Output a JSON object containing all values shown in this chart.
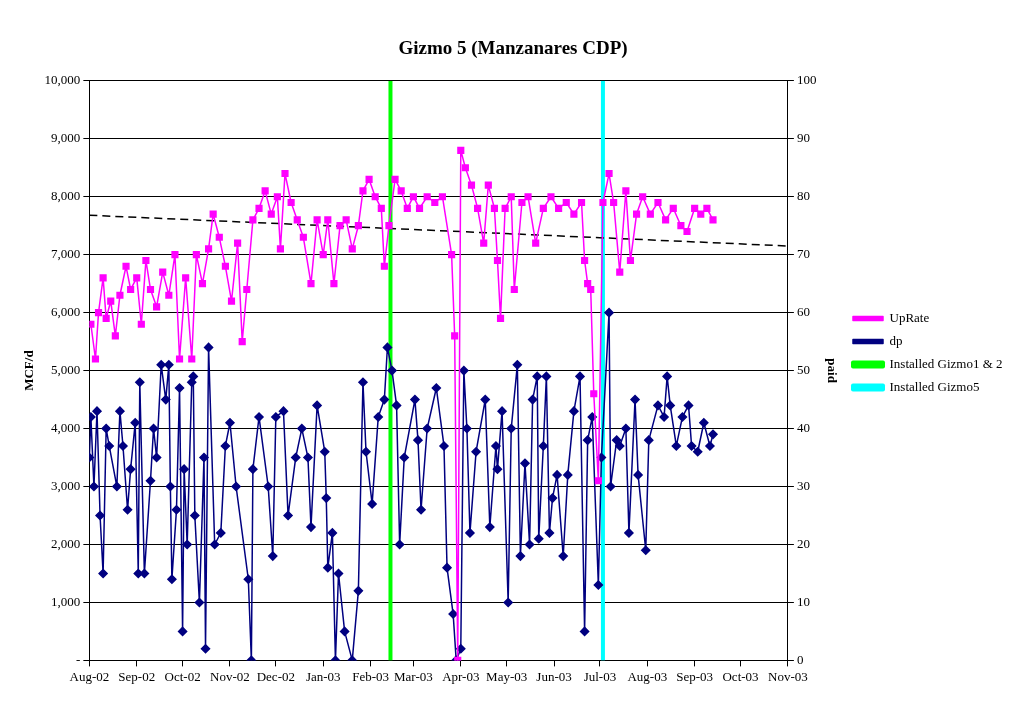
{
  "chart_data": {
    "type": "line",
    "title": "Gizmo 5 (Manzanares CDP)",
    "ylabel": "MCF/d",
    "y2label": "paid",
    "xlim": [
      "2002-08-01",
      "2003-11-01"
    ],
    "xticks": [
      {
        "value": "2002-08-01",
        "label": "Aug-02"
      },
      {
        "value": "2002-09-01",
        "label": "Sep-02"
      },
      {
        "value": "2002-10-01",
        "label": "Oct-02"
      },
      {
        "value": "2002-11-01",
        "label": "Nov-02"
      },
      {
        "value": "2002-12-01",
        "label": "Dec-02"
      },
      {
        "value": "2003-01-01",
        "label": "Jan-03"
      },
      {
        "value": "2003-02-01",
        "label": "Feb-03"
      },
      {
        "value": "2003-03-01",
        "label": "Mar-03"
      },
      {
        "value": "2003-04-01",
        "label": "Apr-03"
      },
      {
        "value": "2003-05-01",
        "label": "May-03"
      },
      {
        "value": "2003-06-01",
        "label": "Jun-03"
      },
      {
        "value": "2003-07-01",
        "label": "Jul-03"
      },
      {
        "value": "2003-08-01",
        "label": "Aug-03"
      },
      {
        "value": "2003-09-01",
        "label": "Sep-03"
      },
      {
        "value": "2003-10-01",
        "label": "Oct-03"
      },
      {
        "value": "2003-11-01",
        "label": "Nov-03"
      }
    ],
    "ylim": [
      0,
      10000
    ],
    "yticks": [
      {
        "value": 0,
        "label": "-"
      },
      {
        "value": 1000,
        "label": "1,000"
      },
      {
        "value": 2000,
        "label": "2,000"
      },
      {
        "value": 3000,
        "label": "3,000"
      },
      {
        "value": 4000,
        "label": "4,000"
      },
      {
        "value": 5000,
        "label": "5,000"
      },
      {
        "value": 6000,
        "label": "6,000"
      },
      {
        "value": 7000,
        "label": "7,000"
      },
      {
        "value": 8000,
        "label": "8,000"
      },
      {
        "value": 9000,
        "label": "9,000"
      },
      {
        "value": 10000,
        "label": "10,000"
      }
    ],
    "y2lim": [
      0,
      100
    ],
    "y2ticks": [
      0,
      10,
      20,
      30,
      40,
      50,
      60,
      70,
      80,
      90,
      100
    ],
    "grid": "y",
    "legend": "right",
    "series": [
      {
        "name": "UpRate",
        "color": "#ff00ff",
        "marker": "square",
        "x": [
          "2002-08-02",
          "2002-08-05",
          "2002-08-07",
          "2002-08-10",
          "2002-08-12",
          "2002-08-15",
          "2002-08-18",
          "2002-08-21",
          "2002-08-25",
          "2002-08-28",
          "2002-09-01",
          "2002-09-04",
          "2002-09-07",
          "2002-09-10",
          "2002-09-14",
          "2002-09-18",
          "2002-09-22",
          "2002-09-26",
          "2002-09-29",
          "2002-10-03",
          "2002-10-07",
          "2002-10-10",
          "2002-10-14",
          "2002-10-18",
          "2002-10-21",
          "2002-10-25",
          "2002-10-29",
          "2002-11-02",
          "2002-11-06",
          "2002-11-09",
          "2002-11-12",
          "2002-11-16",
          "2002-11-20",
          "2002-11-24",
          "2002-11-28",
          "2002-12-02",
          "2002-12-04",
          "2002-12-07",
          "2002-12-11",
          "2002-12-15",
          "2002-12-19",
          "2002-12-24",
          "2002-12-28",
          "2003-01-01",
          "2003-01-04",
          "2003-01-08",
          "2003-01-12",
          "2003-01-16",
          "2003-01-20",
          "2003-01-24",
          "2003-01-27",
          "2003-01-31",
          "2003-02-04",
          "2003-02-08",
          "2003-02-10",
          "2003-02-13",
          "2003-02-17",
          "2003-02-21",
          "2003-02-25",
          "2003-03-01",
          "2003-03-05",
          "2003-03-10",
          "2003-03-15",
          "2003-03-20",
          "2003-03-26",
          "2003-03-28",
          "2003-03-30",
          "2003-04-01",
          "2003-04-04",
          "2003-04-08",
          "2003-04-12",
          "2003-04-16",
          "2003-04-19",
          "2003-04-23",
          "2003-04-25",
          "2003-04-27",
          "2003-04-30",
          "2003-05-04",
          "2003-05-06",
          "2003-05-11",
          "2003-05-15",
          "2003-05-20",
          "2003-05-25",
          "2003-05-30",
          "2003-06-04",
          "2003-06-09",
          "2003-06-14",
          "2003-06-19",
          "2003-06-21",
          "2003-06-23",
          "2003-06-25",
          "2003-06-27",
          "2003-06-30",
          "2003-07-03",
          "2003-07-07",
          "2003-07-10",
          "2003-07-14",
          "2003-07-18",
          "2003-07-21",
          "2003-07-25",
          "2003-07-29",
          "2003-08-03",
          "2003-08-08",
          "2003-08-13",
          "2003-08-18",
          "2003-08-23",
          "2003-08-27",
          "2003-09-01",
          "2003-09-05",
          "2003-09-09",
          "2003-09-13"
        ],
        "values": [
          5800,
          5200,
          6000,
          6600,
          5900,
          6200,
          5600,
          6300,
          6800,
          6400,
          6600,
          5800,
          6900,
          6400,
          6100,
          6700,
          6300,
          7000,
          5200,
          6600,
          5200,
          7000,
          6500,
          7100,
          7700,
          7300,
          6800,
          6200,
          7200,
          5500,
          6400,
          7600,
          7800,
          8100,
          7700,
          8000,
          7100,
          8400,
          7900,
          7600,
          7300,
          6500,
          7600,
          7000,
          7600,
          6500,
          7500,
          7600,
          7100,
          7500,
          8100,
          8300,
          8000,
          7800,
          6800,
          7500,
          8300,
          8100,
          7800,
          8000,
          7800,
          8000,
          7900,
          8000,
          7000,
          5600,
          0,
          8800,
          8500,
          8200,
          7800,
          7200,
          8200,
          7800,
          6900,
          5900,
          7800,
          8000,
          6400,
          7900,
          8000,
          7200,
          7800,
          8000,
          7800,
          7900,
          7700,
          7900,
          6900,
          6500,
          6400,
          4600,
          3100,
          7900,
          8400,
          7900,
          6700,
          8100,
          6900,
          7700,
          8000,
          7700,
          7900,
          7600,
          7800,
          7500,
          7400,
          7800,
          7700,
          7800,
          7600
        ]
      },
      {
        "name": "dp",
        "color": "#000080",
        "marker": "diamond",
        "axis": "y2",
        "x": [
          "2002-08-01",
          "2002-08-02",
          "2002-08-04",
          "2002-08-06",
          "2002-08-08",
          "2002-08-10",
          "2002-08-12",
          "2002-08-14",
          "2002-08-19",
          "2002-08-21",
          "2002-08-23",
          "2002-08-26",
          "2002-08-28",
          "2002-08-31",
          "2002-09-02",
          "2002-09-03",
          "2002-09-06",
          "2002-09-10",
          "2002-09-12",
          "2002-09-14",
          "2002-09-17",
          "2002-09-20",
          "2002-09-22",
          "2002-09-23",
          "2002-09-24",
          "2002-09-27",
          "2002-09-29",
          "2002-10-01",
          "2002-10-02",
          "2002-10-04",
          "2002-10-07",
          "2002-10-08",
          "2002-10-09",
          "2002-10-12",
          "2002-10-15",
          "2002-10-16",
          "2002-10-18",
          "2002-10-22",
          "2002-10-26",
          "2002-10-29",
          "2002-11-01",
          "2002-11-05",
          "2002-11-13",
          "2002-11-15",
          "2002-11-16",
          "2002-11-20",
          "2002-11-26",
          "2002-11-29",
          "2002-12-01",
          "2002-12-06",
          "2002-12-09",
          "2002-12-14",
          "2002-12-18",
          "2002-12-22",
          "2002-12-24",
          "2002-12-28",
          "2003-01-02",
          "2003-01-03",
          "2003-01-04",
          "2003-01-07",
          "2003-01-09",
          "2003-01-11",
          "2003-01-15",
          "2003-01-20",
          "2003-01-24",
          "2003-01-27",
          "2003-01-29",
          "2003-02-02",
          "2003-02-06",
          "2003-02-10",
          "2003-02-12",
          "2003-02-15",
          "2003-02-18",
          "2003-02-20",
          "2003-02-23",
          "2003-03-02",
          "2003-03-04",
          "2003-03-06",
          "2003-03-10",
          "2003-03-16",
          "2003-03-21",
          "2003-03-23",
          "2003-03-27",
          "2003-03-29",
          "2003-04-01",
          "2003-04-03",
          "2003-04-05",
          "2003-04-07",
          "2003-04-11",
          "2003-04-17",
          "2003-04-20",
          "2003-04-24",
          "2003-04-25",
          "2003-04-28",
          "2003-05-02",
          "2003-05-04",
          "2003-05-08",
          "2003-05-10",
          "2003-05-13",
          "2003-05-16",
          "2003-05-18",
          "2003-05-21",
          "2003-05-22",
          "2003-05-25",
          "2003-05-27",
          "2003-05-29",
          "2003-05-31",
          "2003-06-03",
          "2003-06-07",
          "2003-06-10",
          "2003-06-14",
          "2003-06-18",
          "2003-06-21",
          "2003-06-23",
          "2003-06-26",
          "2003-06-30",
          "2003-07-02",
          "2003-07-07",
          "2003-07-08",
          "2003-07-12",
          "2003-07-14",
          "2003-07-18",
          "2003-07-20",
          "2003-07-24",
          "2003-07-26",
          "2003-07-31",
          "2003-08-02",
          "2003-08-08",
          "2003-08-12",
          "2003-08-14",
          "2003-08-16",
          "2003-08-20",
          "2003-08-24",
          "2003-08-28",
          "2003-08-30",
          "2003-09-03",
          "2003-09-07",
          "2003-09-11",
          "2003-09-13"
        ],
        "values": [
          35,
          42,
          30,
          43,
          25,
          15,
          40,
          37,
          30,
          43,
          37,
          26,
          33,
          41,
          15,
          48,
          15,
          31,
          40,
          35,
          51,
          45,
          51,
          30,
          14,
          26,
          47,
          5,
          33,
          20,
          48,
          49,
          25,
          10,
          35,
          2,
          54,
          20,
          22,
          37,
          41,
          30,
          14,
          0,
          33,
          42,
          30,
          18,
          42,
          43,
          25,
          35,
          40,
          35,
          23,
          44,
          36,
          28,
          16,
          22,
          0,
          15,
          5,
          0,
          12,
          48,
          36,
          27,
          42,
          45,
          54,
          50,
          44,
          20,
          35,
          45,
          38,
          26,
          40,
          47,
          37,
          16,
          8,
          0,
          2,
          50,
          40,
          22,
          36,
          45,
          23,
          37,
          33,
          43,
          10,
          40,
          51,
          18,
          34,
          20,
          45,
          49,
          21,
          37,
          49,
          22,
          28,
          32,
          18,
          32,
          43,
          49,
          5,
          38,
          42,
          13,
          35,
          60,
          30,
          38,
          37,
          40,
          22,
          45,
          32,
          19,
          38,
          44,
          42,
          49,
          44,
          37,
          42,
          44,
          37,
          36,
          41,
          37,
          39
        ]
      },
      {
        "color": "#000000",
        "marker": "none",
        "line_style": "dashed",
        "x": [
          "2002-08-01",
          "2003-11-01"
        ],
        "values": [
          7680,
          7150
        ]
      },
      {
        "name": "Installed Gizmo1 & 2",
        "color": "#00ff00",
        "marker": "none",
        "x": [
          "2003-02-14",
          "2003-02-14"
        ],
        "values": [
          0,
          10000
        ]
      },
      {
        "name": "Installed Gizmo5",
        "color": "#00ffff",
        "marker": "none",
        "x": [
          "2003-07-03",
          "2003-07-03"
        ],
        "values": [
          0,
          10000
        ]
      }
    ]
  }
}
